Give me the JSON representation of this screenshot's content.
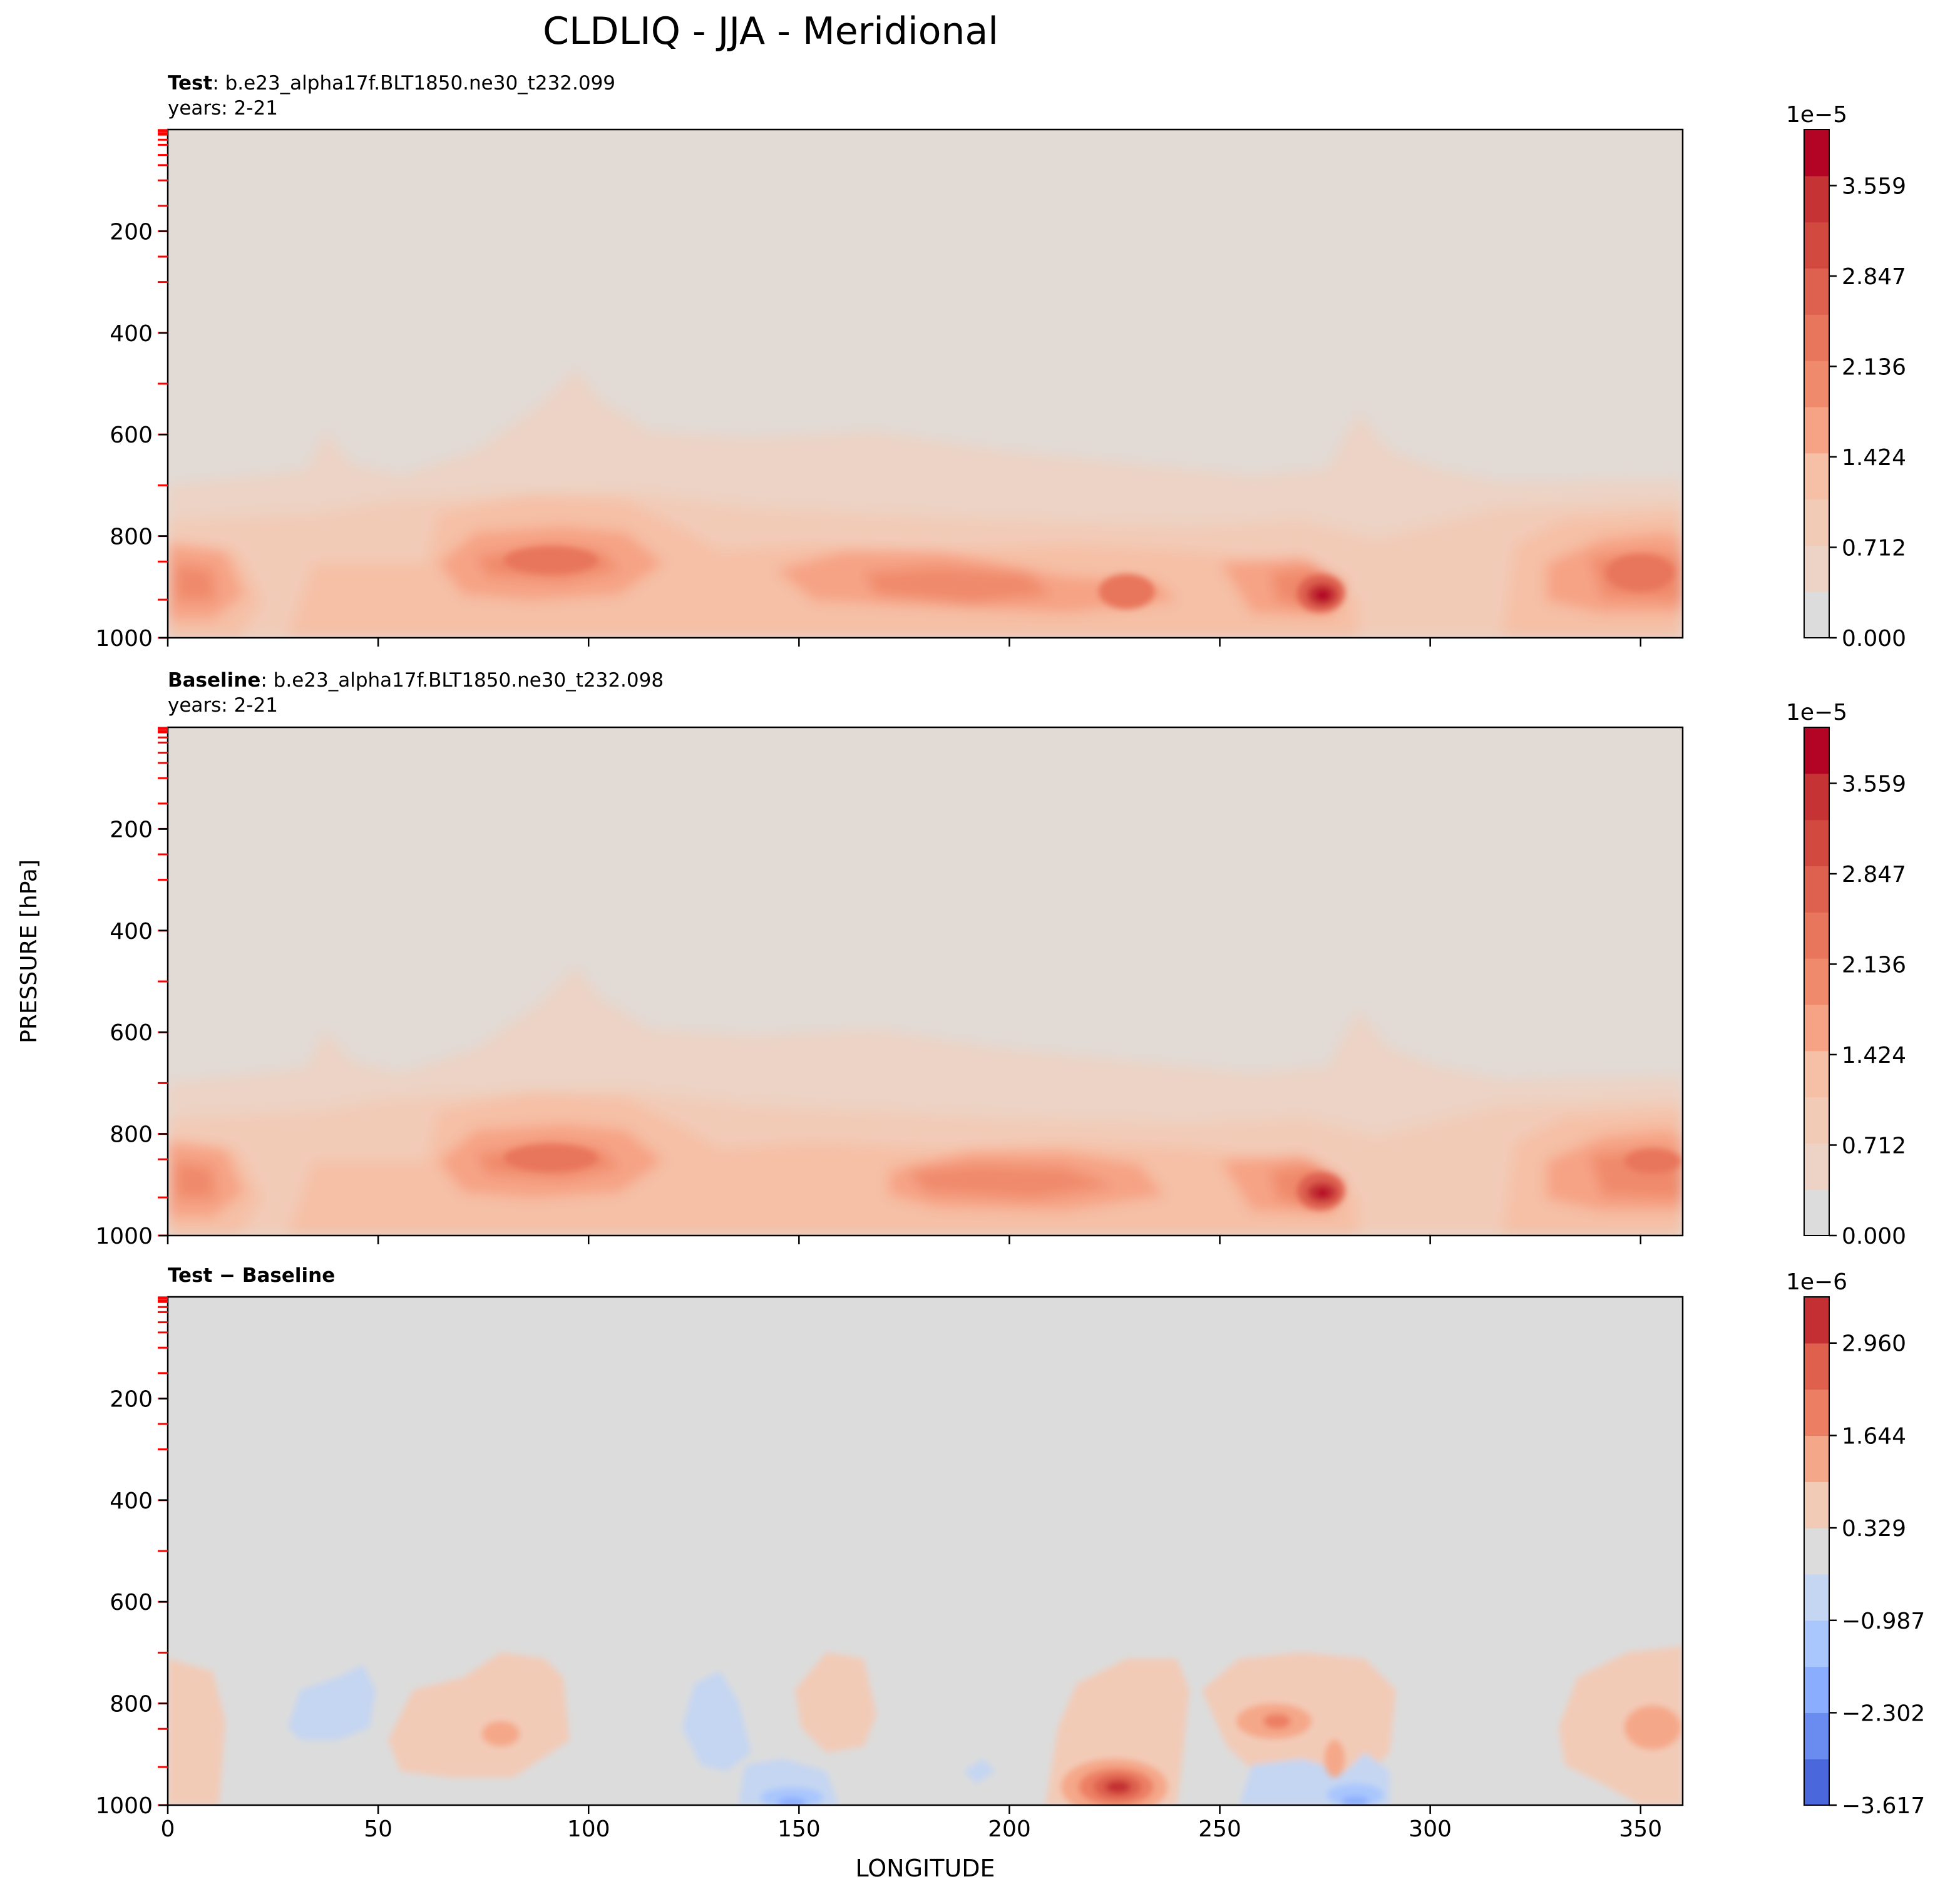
{
  "figure": {
    "title": "CLDLIQ - JJA - Meridional",
    "shared_ylabel": "PRESSURE [hPa]",
    "shared_xlabel": "LONGITUDE"
  },
  "chart_data": [
    {
      "type": "heatmap",
      "panel": "test",
      "header_bold": "Test",
      "header_rest": ": b.e23_alpha17f.BLT1850.ne30_t232.099",
      "years": "years: 2-21",
      "xlim": [
        0,
        360
      ],
      "ylim": [
        1000,
        0
      ],
      "xticks": [
        0,
        50,
        100,
        150,
        200,
        250,
        300,
        350
      ],
      "yticks": [
        200,
        400,
        600,
        800,
        1000
      ],
      "colorbar": {
        "scale_label": "1e−5",
        "ticks": [
          "0.000",
          "0.712",
          "1.424",
          "2.136",
          "2.847",
          "3.559"
        ],
        "tick_values": [
          0.0,
          0.712,
          1.424,
          2.136,
          2.847,
          3.559
        ],
        "range": [
          0.0,
          4.0
        ],
        "levels": 11,
        "colors": [
          "#dddcdc",
          "#ecd3c5",
          "#f2cbb7",
          "#f5c0a6",
          "#f6a385",
          "#f08a6c",
          "#e8765c",
          "#de6150",
          "#d1493f",
          "#c53334",
          "#b40426"
        ]
      },
      "features": [
        {
          "lon": 225,
          "p": 930,
          "value": 2.9
        },
        {
          "lon": 274,
          "p": 925,
          "value": 3.6
        },
        {
          "lon": 100,
          "p": 850,
          "value": 2.6
        },
        {
          "lon": 350,
          "p": 880,
          "value": 2.5
        }
      ]
    },
    {
      "type": "heatmap",
      "panel": "baseline",
      "header_bold": "Baseline",
      "header_rest": ": b.e23_alpha17f.BLT1850.ne30_t232.098",
      "years": "years: 2-21",
      "xlim": [
        0,
        360
      ],
      "ylim": [
        1000,
        0
      ],
      "xticks": [
        0,
        50,
        100,
        150,
        200,
        250,
        300,
        350
      ],
      "yticks": [
        200,
        400,
        600,
        800,
        1000
      ],
      "colorbar": {
        "scale_label": "1e−5",
        "ticks": [
          "0.000",
          "0.712",
          "1.424",
          "2.136",
          "2.847",
          "3.559"
        ],
        "tick_values": [
          0.0,
          0.712,
          1.424,
          2.136,
          2.847,
          3.559
        ],
        "range": [
          0.0,
          4.0
        ],
        "levels": 11,
        "colors": [
          "#dddcdc",
          "#ecd3c5",
          "#f2cbb7",
          "#f5c0a6",
          "#f6a385",
          "#f08a6c",
          "#e8765c",
          "#de6150",
          "#d1493f",
          "#c53334",
          "#b40426"
        ]
      },
      "features": [
        {
          "lon": 274,
          "p": 925,
          "value": 3.4
        },
        {
          "lon": 100,
          "p": 850,
          "value": 2.6
        },
        {
          "lon": 350,
          "p": 880,
          "value": 2.3
        }
      ]
    },
    {
      "type": "heatmap",
      "panel": "difference",
      "header_bold": "Test − Baseline",
      "xlim": [
        0,
        360
      ],
      "ylim": [
        1000,
        0
      ],
      "xticks": [
        0,
        50,
        100,
        150,
        200,
        250,
        300,
        350
      ],
      "yticks": [
        200,
        400,
        600,
        800,
        1000
      ],
      "colorbar": {
        "scale_label": "1e−6",
        "ticks": [
          "−3.617",
          "−2.302",
          "−0.987",
          "0.329",
          "1.644",
          "2.960"
        ],
        "tick_values": [
          -3.617,
          -2.302,
          -0.987,
          0.329,
          1.644,
          2.96
        ],
        "range": [
          -3.617,
          3.617
        ],
        "levels": 11,
        "colors": [
          "#4a67dc",
          "#6a8bef",
          "#8badfd",
          "#a9c6fd",
          "#c5d6f2",
          "#dcdcdc",
          "#f2cbb7",
          "#f5a789",
          "#ec7f63",
          "#de604d",
          "#c32f33"
        ]
      },
      "features": [
        {
          "lon": 225,
          "p": 925,
          "value": 3.0
        },
        {
          "lon": 263,
          "p": 840,
          "value": 1.9
        },
        {
          "lon": 148,
          "p": 985,
          "value": -2.5
        },
        {
          "lon": 280,
          "p": 985,
          "value": -2.4
        }
      ]
    }
  ]
}
